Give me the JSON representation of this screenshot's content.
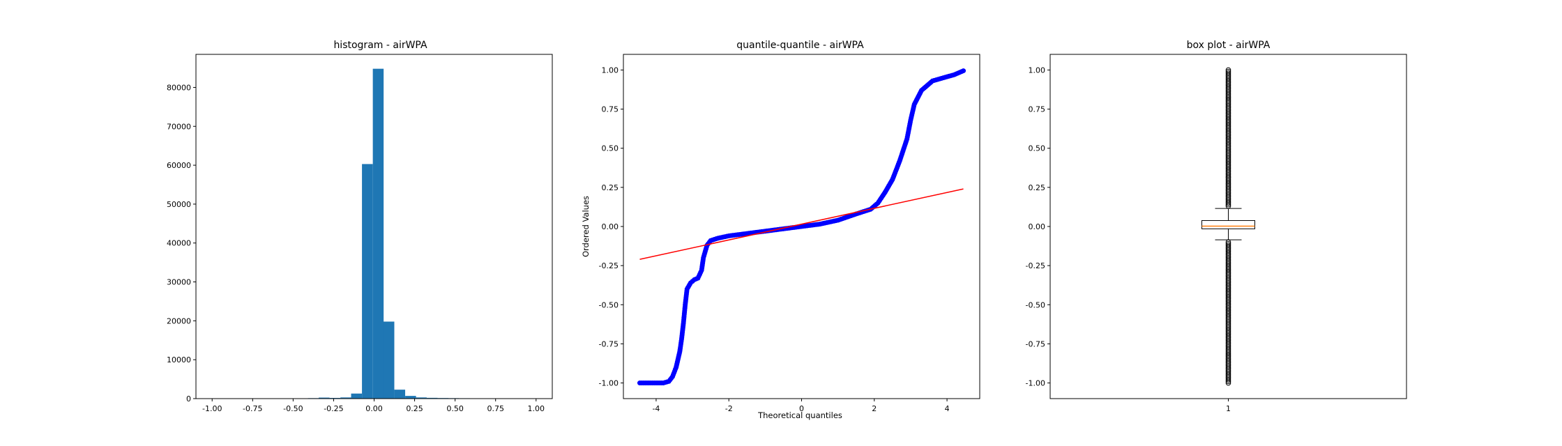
{
  "chart_data": [
    {
      "type": "bar",
      "title": "histogram - airWPA",
      "xlabel": "",
      "ylabel": "",
      "xlim": [
        -1.1,
        1.1
      ],
      "ylim": [
        0,
        88500
      ],
      "xticks": [
        "-1.00",
        "-0.75",
        "-0.50",
        "-0.25",
        "0.00",
        "0.25",
        "0.50",
        "0.75",
        "1.00"
      ],
      "yticks": [
        "0",
        "10000",
        "20000",
        "30000",
        "40000",
        "50000",
        "60000",
        "70000",
        "80000"
      ],
      "bin_width": 0.0667,
      "bins": [
        {
          "x0": -0.675,
          "count": 60
        },
        {
          "x0": -0.608,
          "count": 20
        },
        {
          "x0": -0.542,
          "count": 40
        },
        {
          "x0": -0.475,
          "count": 80
        },
        {
          "x0": -0.408,
          "count": 120
        },
        {
          "x0": -0.342,
          "count": 260
        },
        {
          "x0": -0.275,
          "count": 180
        },
        {
          "x0": -0.208,
          "count": 300
        },
        {
          "x0": -0.142,
          "count": 1300
        },
        {
          "x0": -0.075,
          "count": 60300
        },
        {
          "x0": -0.008,
          "count": 84800
        },
        {
          "x0": 0.058,
          "count": 19800
        },
        {
          "x0": 0.125,
          "count": 2300
        },
        {
          "x0": 0.192,
          "count": 700
        },
        {
          "x0": 0.258,
          "count": 300
        },
        {
          "x0": 0.325,
          "count": 200
        },
        {
          "x0": 0.392,
          "count": 150
        },
        {
          "x0": 0.458,
          "count": 120
        },
        {
          "x0": 0.525,
          "count": 100
        },
        {
          "x0": 0.592,
          "count": 80
        },
        {
          "x0": 0.658,
          "count": 60
        },
        {
          "x0": 0.725,
          "count": 40
        },
        {
          "x0": 0.792,
          "count": 30
        },
        {
          "x0": 0.858,
          "count": 20
        }
      ],
      "bar_color": "#1f77b4"
    },
    {
      "type": "scatter",
      "title": "quantile-quantile - airWPA",
      "xlabel": "Theoretical quantiles",
      "ylabel": "Ordered Values",
      "xlim": [
        -4.9,
        4.9
      ],
      "ylim": [
        -1.1,
        1.1
      ],
      "xticks": [
        "-4",
        "-2",
        "0",
        "2",
        "4"
      ],
      "yticks": [
        "-1.00",
        "-0.75",
        "-0.50",
        "-0.25",
        "0.00",
        "0.25",
        "0.50",
        "0.75",
        "1.00"
      ],
      "point_color": "#0000ff",
      "line_color": "#ff0000",
      "points": [
        [
          -4.45,
          -1.0
        ],
        [
          -4.1,
          -1.0
        ],
        [
          -3.8,
          -1.0
        ],
        [
          -3.65,
          -0.99
        ],
        [
          -3.55,
          -0.96
        ],
        [
          -3.45,
          -0.9
        ],
        [
          -3.35,
          -0.8
        ],
        [
          -3.3,
          -0.72
        ],
        [
          -3.25,
          -0.62
        ],
        [
          -3.2,
          -0.5
        ],
        [
          -3.15,
          -0.4
        ],
        [
          -3.05,
          -0.36
        ],
        [
          -2.95,
          -0.34
        ],
        [
          -2.85,
          -0.33
        ],
        [
          -2.75,
          -0.28
        ],
        [
          -2.7,
          -0.2
        ],
        [
          -2.6,
          -0.12
        ],
        [
          -2.5,
          -0.09
        ],
        [
          -2.3,
          -0.075
        ],
        [
          -2.0,
          -0.06
        ],
        [
          -1.5,
          -0.045
        ],
        [
          -1.0,
          -0.03
        ],
        [
          -0.5,
          -0.015
        ],
        [
          0.0,
          0.0
        ],
        [
          0.5,
          0.015
        ],
        [
          1.0,
          0.04
        ],
        [
          1.5,
          0.08
        ],
        [
          1.9,
          0.11
        ],
        [
          2.1,
          0.15
        ],
        [
          2.3,
          0.22
        ],
        [
          2.5,
          0.3
        ],
        [
          2.7,
          0.42
        ],
        [
          2.9,
          0.56
        ],
        [
          3.0,
          0.68
        ],
        [
          3.1,
          0.78
        ],
        [
          3.3,
          0.87
        ],
        [
          3.6,
          0.93
        ],
        [
          3.9,
          0.95
        ],
        [
          4.2,
          0.97
        ],
        [
          4.45,
          0.995
        ]
      ],
      "fit_line": {
        "x": [
          -4.45,
          4.45
        ],
        "y": [
          -0.21,
          0.24
        ]
      }
    },
    {
      "type": "box",
      "title": "box plot - airWPA",
      "xlabel": "",
      "ylabel": "",
      "ylim": [
        -1.1,
        1.1
      ],
      "xticks": [
        "1"
      ],
      "yticks": [
        "-1.00",
        "-0.75",
        "-0.50",
        "-0.25",
        "0.00",
        "0.25",
        "0.50",
        "0.75",
        "1.00"
      ],
      "box": {
        "q1": -0.015,
        "median": 0.002,
        "q3": 0.038,
        "whisker_low": -0.085,
        "whisker_high": 0.115
      },
      "median_color": "#ff7f0e",
      "outliers_high": [
        1.0,
        0.99,
        0.97,
        0.95,
        0.93,
        0.9,
        0.87,
        0.84,
        0.81,
        0.78,
        0.75,
        0.72,
        0.69,
        0.66,
        0.63,
        0.6,
        0.57,
        0.54,
        0.51,
        0.48,
        0.45,
        0.42,
        0.39,
        0.36,
        0.33,
        0.3,
        0.27,
        0.24,
        0.21,
        0.19,
        0.17,
        0.15,
        0.13
      ],
      "outliers_low": [
        -0.1,
        -0.12,
        -0.14,
        -0.17,
        -0.2,
        -0.23,
        -0.26,
        -0.29,
        -0.32,
        -0.35,
        -0.38,
        -0.41,
        -0.44,
        -0.47,
        -0.5,
        -0.53,
        -0.56,
        -0.59,
        -0.62,
        -0.65,
        -0.68,
        -0.71,
        -0.74,
        -0.77,
        -0.8,
        -0.83,
        -0.86,
        -0.89,
        -0.92,
        -0.95,
        -0.97,
        -0.99,
        -1.0
      ]
    }
  ]
}
